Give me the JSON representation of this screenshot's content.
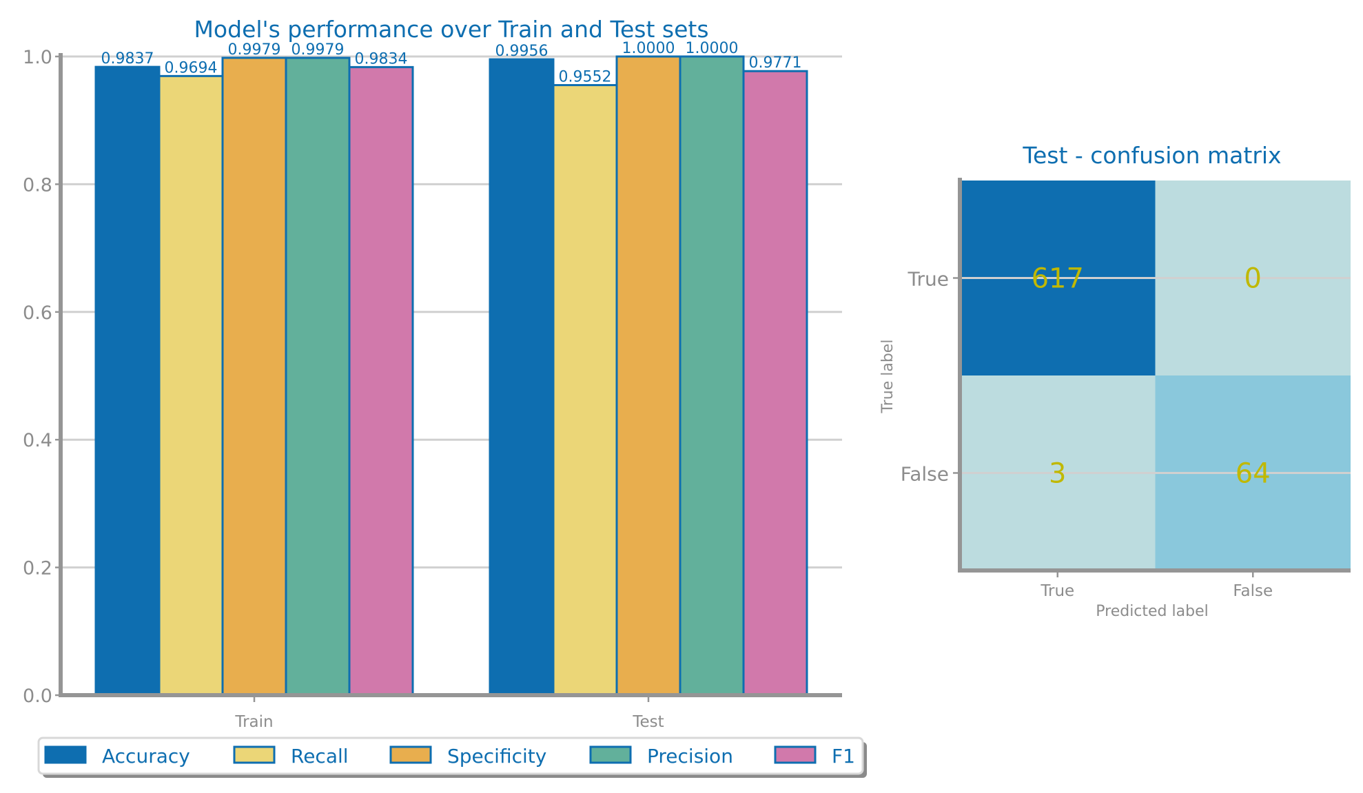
{
  "colors": {
    "accent": "#0e6eb0",
    "axis": "#959595",
    "grid": "#d0d0d0",
    "tick_text": "#8c8c8c",
    "cm_text": "#c0b800",
    "cm_dark": "#0e6eb0",
    "cm_light": "#bcdcdf",
    "cm_mid": "#8ac8dc"
  },
  "chart_data": [
    {
      "type": "bar",
      "title": "Model's performance over Train and Test sets",
      "categories": [
        "Train",
        "Test"
      ],
      "ylim": [
        0,
        1.0
      ],
      "yticks": [
        "0.0",
        "0.2",
        "0.4",
        "0.6",
        "0.8",
        "1.0"
      ],
      "grid": true,
      "legend_position": "bottom",
      "series": [
        {
          "name": "Accuracy",
          "color": "#0e6eb0",
          "values": [
            0.9837,
            0.9956
          ],
          "labels": [
            "0.9837",
            "0.9956"
          ]
        },
        {
          "name": "Recall",
          "color": "#ebd677",
          "values": [
            0.9694,
            0.9552
          ],
          "labels": [
            "0.9694",
            "0.9552"
          ]
        },
        {
          "name": "Specificity",
          "color": "#e8ae4e",
          "values": [
            0.9979,
            1.0
          ],
          "labels": [
            "0.9979",
            "1.0000"
          ]
        },
        {
          "name": "Precision",
          "color": "#62b09b",
          "values": [
            0.9979,
            1.0
          ],
          "labels": [
            "0.9979",
            "1.0000"
          ]
        },
        {
          "name": "F1",
          "color": "#d179ab",
          "values": [
            0.9834,
            0.9771
          ],
          "labels": [
            "0.9834",
            "0.9771"
          ]
        }
      ]
    },
    {
      "type": "heatmap",
      "title": "Test - confusion matrix",
      "xlabel": "Predicted label",
      "ylabel": "True label",
      "x_categories": [
        "True",
        "False"
      ],
      "y_categories": [
        "True",
        "False"
      ],
      "values": [
        [
          617,
          0
        ],
        [
          3,
          64
        ]
      ],
      "labels": [
        [
          "617",
          "0"
        ],
        [
          "3",
          "64"
        ]
      ]
    }
  ]
}
